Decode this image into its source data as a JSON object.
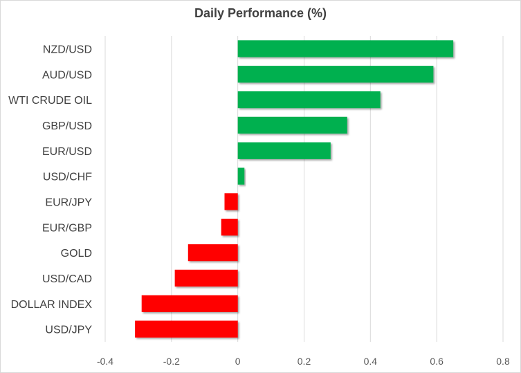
{
  "chart_data": {
    "type": "bar",
    "orientation": "horizontal",
    "title": "Daily Performance  (%)",
    "categories": [
      "NZD/USD",
      "AUD/USD",
      "WTI CRUDE OIL",
      "GBP/USD",
      "EUR/USD",
      "USD/CHF",
      "EUR/JPY",
      "EUR/GBP",
      "GOLD",
      "USD/CAD",
      "DOLLAR INDEX",
      "USD/JPY"
    ],
    "values": [
      0.65,
      0.59,
      0.43,
      0.33,
      0.28,
      0.02,
      -0.04,
      -0.05,
      -0.15,
      -0.19,
      -0.29,
      -0.31
    ],
    "xlim": [
      -0.4,
      0.8
    ],
    "xticks": [
      -0.4,
      -0.2,
      0,
      0.2,
      0.4,
      0.6,
      0.8
    ],
    "xtick_labels": [
      "-0.4",
      "-0.2",
      "0",
      "0.2",
      "0.4",
      "0.6",
      "0.8"
    ],
    "grid": "vertical",
    "positive_color": "#00b050",
    "negative_color": "#ff0000"
  }
}
